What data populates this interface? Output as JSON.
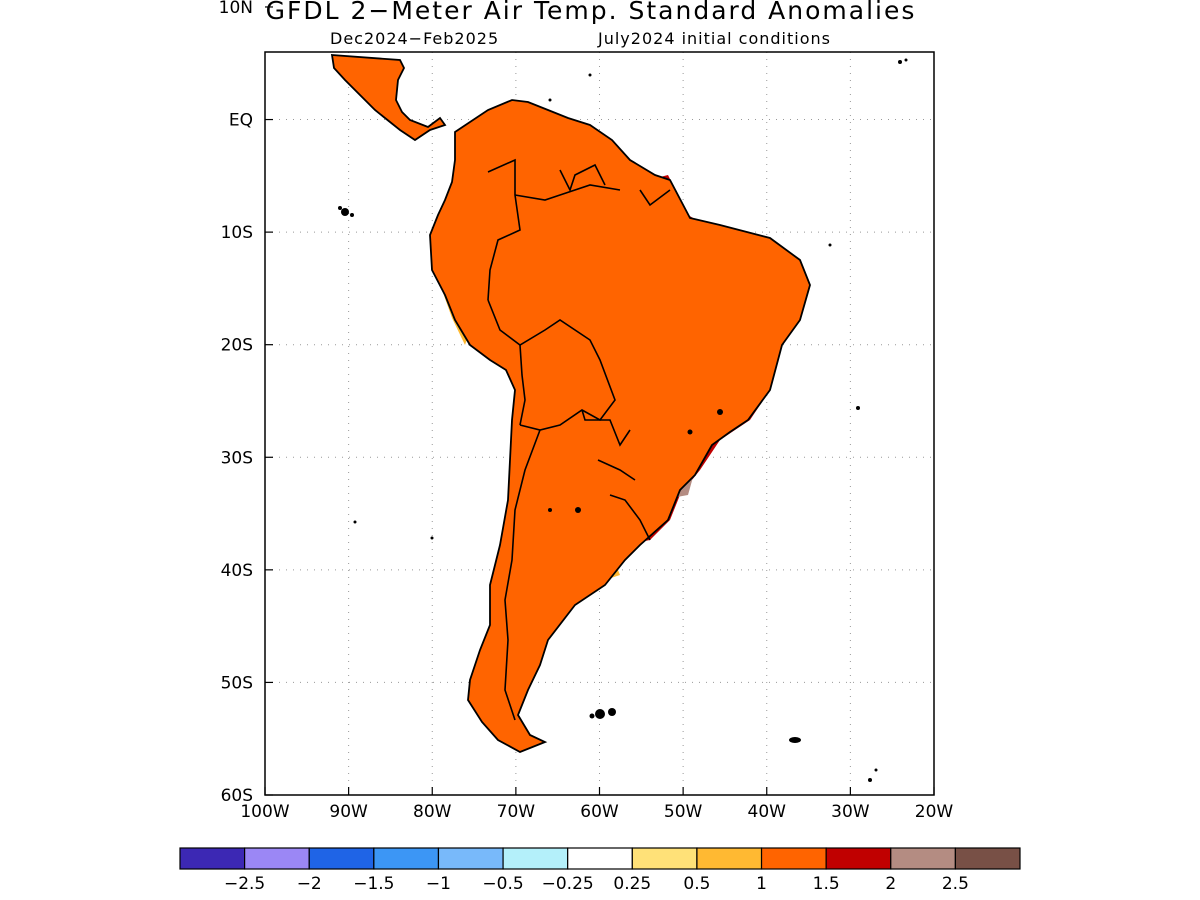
{
  "title": "GFDL 2−Meter Air Temp. Standard Anomalies",
  "subtitle_left": "Dec2024−Feb2025",
  "subtitle_right": "July2024 initial conditions",
  "map": {
    "region": "South America",
    "lon_range": [
      -100,
      -20
    ],
    "lat_range": [
      -60,
      6
    ],
    "lon_ticks": [
      {
        "value": -100,
        "label": "100W"
      },
      {
        "value": -90,
        "label": "90W"
      },
      {
        "value": -80,
        "label": "80W"
      },
      {
        "value": -70,
        "label": "70W"
      },
      {
        "value": -60,
        "label": "60W"
      },
      {
        "value": -50,
        "label": "50W"
      },
      {
        "value": -40,
        "label": "40W"
      },
      {
        "value": -30,
        "label": "30W"
      },
      {
        "value": -20,
        "label": "20W"
      }
    ],
    "lat_ticks": [
      {
        "value": 10,
        "label": "10N"
      },
      {
        "value": 0,
        "label": "EQ"
      },
      {
        "value": -10,
        "label": "10S"
      },
      {
        "value": -20,
        "label": "20S"
      },
      {
        "value": -30,
        "label": "30S"
      },
      {
        "value": -40,
        "label": "40S"
      },
      {
        "value": -50,
        "label": "50S"
      },
      {
        "value": -60,
        "label": "60S"
      }
    ],
    "grid": "dotted"
  },
  "colorbar": {
    "colors": [
      "#3c28b4",
      "#9b87f5",
      "#1f64e6",
      "#3c96f5",
      "#78b9fa",
      "#b4f0fa",
      "#ffffff",
      "#ffe178",
      "#ffb932",
      "#ff6400",
      "#c00000",
      "#b48c82",
      "#785046"
    ],
    "labels": [
      "−2.5",
      "−2",
      "−1.5",
      "−1",
      "−0.5",
      "−0.25",
      "0.25",
      "0.5",
      "1",
      "1.5",
      "2",
      "2.5"
    ]
  },
  "legend": {
    "colors": {
      "outline": "#000000",
      "land_base": "#ff6400"
    }
  }
}
